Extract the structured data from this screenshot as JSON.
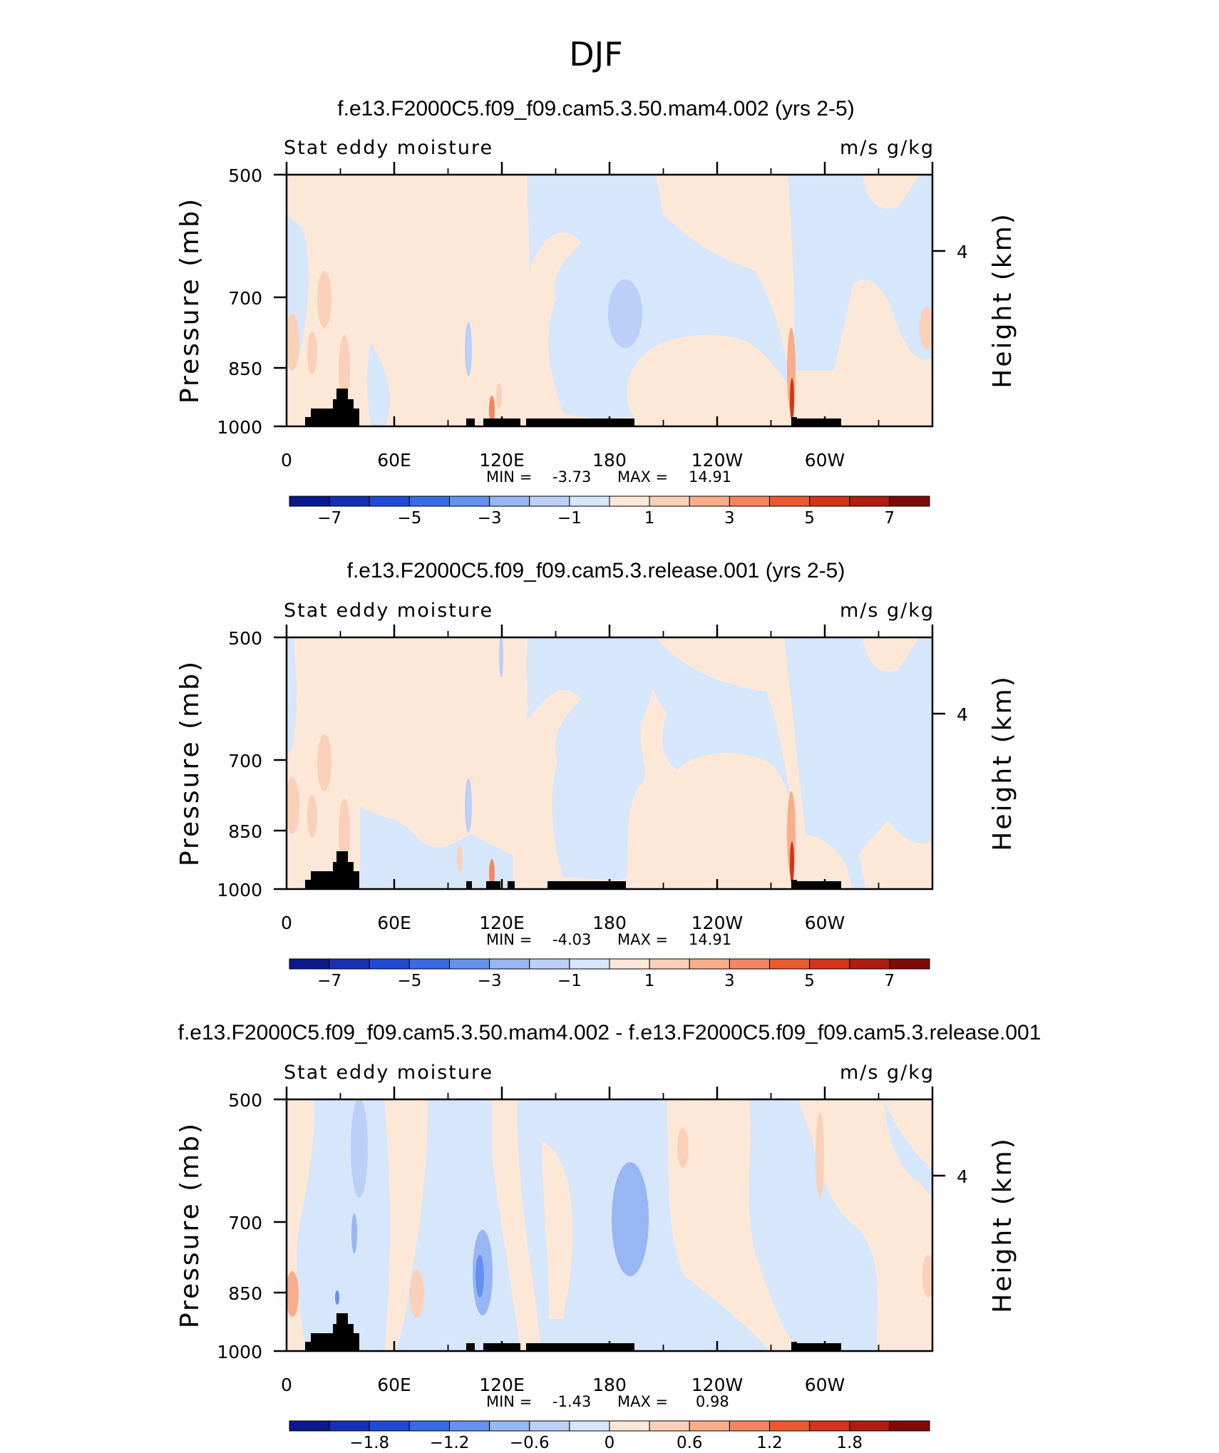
{
  "figure_title": "DJF",
  "chart_data": [
    {
      "type": "heatmap",
      "title": "f.e13.F2000C5.f09_f09.cam5.3.50.mam4.002 (yrs 2-5)",
      "subtitle_left": "Stat eddy moisture",
      "subtitle_right": "m/s g/kg",
      "ylabel": "Pressure (mb)",
      "ylabel_right": "Height (km)",
      "y_ticks": [
        "500",
        "700",
        "850",
        "1000"
      ],
      "y_right_ticks": [
        "4"
      ],
      "x_ticks": [
        "0",
        "60E",
        "120E",
        "180",
        "120W",
        "60W"
      ],
      "xlim": [
        0,
        360
      ],
      "ylim": [
        1000,
        500
      ],
      "min_label": "MIN =",
      "min_value": "-3.73",
      "max_label": "MAX =",
      "max_value": "14.91",
      "colorbar_labels": [
        "−7",
        "−5",
        "−3",
        "−1",
        "1",
        "3",
        "5",
        "7"
      ],
      "colors": [
        "#0a1a8c",
        "#1530b5",
        "#1f4bd6",
        "#3a6be6",
        "#6491ee",
        "#97b6f3",
        "#bccff7",
        "#d6e6fb",
        "#fde8d8",
        "#fbd0b8",
        "#f8ae8a",
        "#f48560",
        "#ec5a32",
        "#d6331a",
        "#b01c10",
        "#800a08"
      ]
    },
    {
      "type": "heatmap",
      "title": "f.e13.F2000C5.f09_f09.cam5.3.release.001 (yrs 2-5)",
      "subtitle_left": "Stat eddy moisture",
      "subtitle_right": "m/s g/kg",
      "ylabel": "Pressure (mb)",
      "ylabel_right": "Height (km)",
      "y_ticks": [
        "500",
        "700",
        "850",
        "1000"
      ],
      "y_right_ticks": [
        "4"
      ],
      "x_ticks": [
        "0",
        "60E",
        "120E",
        "180",
        "120W",
        "60W"
      ],
      "xlim": [
        0,
        360
      ],
      "ylim": [
        1000,
        500
      ],
      "min_label": "MIN =",
      "min_value": "-4.03",
      "max_label": "MAX =",
      "max_value": "14.91",
      "colorbar_labels": [
        "−7",
        "−5",
        "−3",
        "−1",
        "1",
        "3",
        "5",
        "7"
      ],
      "colors": [
        "#0a1a8c",
        "#1530b5",
        "#1f4bd6",
        "#3a6be6",
        "#6491ee",
        "#97b6f3",
        "#bccff7",
        "#d6e6fb",
        "#fde8d8",
        "#fbd0b8",
        "#f8ae8a",
        "#f48560",
        "#ec5a32",
        "#d6331a",
        "#b01c10",
        "#800a08"
      ]
    },
    {
      "type": "heatmap",
      "title": "f.e13.F2000C5.f09_f09.cam5.3.50.mam4.002 - f.e13.F2000C5.f09_f09.cam5.3.release.001",
      "subtitle_left": "Stat eddy moisture",
      "subtitle_right": "m/s g/kg",
      "ylabel": "Pressure (mb)",
      "ylabel_right": "Height (km)",
      "y_ticks": [
        "500",
        "700",
        "850",
        "1000"
      ],
      "y_right_ticks": [
        "4"
      ],
      "x_ticks": [
        "0",
        "60E",
        "120E",
        "180",
        "120W",
        "60W"
      ],
      "xlim": [
        0,
        360
      ],
      "ylim": [
        1000,
        500
      ],
      "min_label": "MIN =",
      "min_value": "-1.43",
      "max_label": "MAX =",
      "max_value": "0.98",
      "colorbar_labels": [
        "−1.8",
        "−1.2",
        "−0.6",
        "0",
        "0.6",
        "1.2",
        "1.8"
      ],
      "colors": [
        "#0a1a8c",
        "#1530b5",
        "#1f4bd6",
        "#3a6be6",
        "#6491ee",
        "#97b6f3",
        "#bccff7",
        "#d6e6fb",
        "#fde8d8",
        "#fbd0b8",
        "#f8ae8a",
        "#f48560",
        "#ec5a32",
        "#d6331a",
        "#b01c10",
        "#800a08"
      ]
    }
  ]
}
